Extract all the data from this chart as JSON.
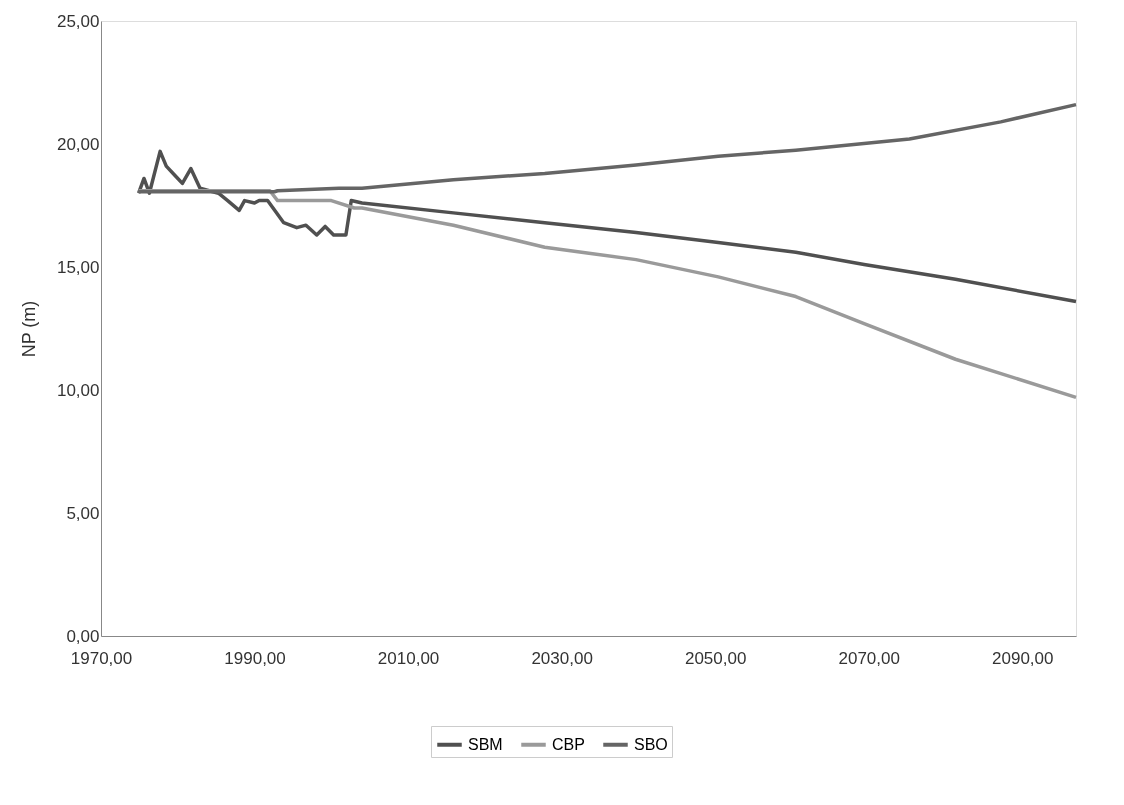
{
  "chart_data": {
    "type": "line",
    "ylabel": "NP (m)",
    "xlim": [
      1970,
      2097
    ],
    "ylim": [
      0,
      25
    ],
    "xticks": [
      {
        "value": 1970,
        "label": "1970,00"
      },
      {
        "value": 1990,
        "label": "1990,00"
      },
      {
        "value": 2010,
        "label": "2010,00"
      },
      {
        "value": 2030,
        "label": "2030,00"
      },
      {
        "value": 2050,
        "label": "2050,00"
      },
      {
        "value": 2070,
        "label": "2070,00"
      },
      {
        "value": 2090,
        "label": "2090,00"
      }
    ],
    "yticks": [
      {
        "value": 0,
        "label": "0,00"
      },
      {
        "value": 5,
        "label": "5,00"
      },
      {
        "value": 10,
        "label": "10,00"
      },
      {
        "value": 15,
        "label": "15,00"
      },
      {
        "value": 20,
        "label": "20,00"
      },
      {
        "value": 25,
        "label": "25,00"
      }
    ],
    "grid": false,
    "legend": "bottom",
    "line_style": "solid",
    "marker": "none",
    "series": [
      {
        "name": "SBM",
        "color": "#505050",
        "x": [
          1974.9,
          1975.6,
          1976.3,
          1977.7,
          1978.5,
          1979.7,
          1980.6,
          1981.7,
          1982.9,
          1985.3,
          1986.5,
          1988,
          1988.7,
          1990,
          1990.6,
          1991.7,
          1993.8,
          1995.5,
          1996.7,
          1998.1,
          1999.2,
          2000.3,
          2001.9,
          2002.6,
          2004,
          2015.9,
          2027.8,
          2039.7,
          2050.4,
          2060.5,
          2069.4,
          2081.3,
          2097
        ],
        "values": [
          18.0,
          18.6,
          18.0,
          19.7,
          19.1,
          18.7,
          18.4,
          19.0,
          18.2,
          18.0,
          17.7,
          17.3,
          17.7,
          17.6,
          17.7,
          17.7,
          16.8,
          16.6,
          16.7,
          16.3,
          16.65,
          16.3,
          16.3,
          17.7,
          17.6,
          17.2,
          16.8,
          16.4,
          16.0,
          15.6,
          15.1,
          14.5,
          13.6
        ]
      },
      {
        "name": "CBP",
        "color": "#9a9a9a",
        "x": [
          1974.9,
          1992,
          1993,
          2000,
          2003,
          2004,
          2015.9,
          2027.8,
          2039.7,
          2050.4,
          2060.5,
          2069.4,
          2081.3,
          2097
        ],
        "values": [
          18.1,
          18.1,
          17.7,
          17.7,
          17.4,
          17.4,
          16.7,
          15.8,
          15.3,
          14.6,
          13.8,
          12.7,
          11.25,
          9.7
        ]
      },
      {
        "name": "SBO",
        "color": "#656565",
        "x": [
          1974.9,
          1992.6,
          1993,
          2001,
          2004,
          2015.9,
          2027.8,
          2039.7,
          2050.4,
          2060.5,
          2075.3,
          2087.2,
          2097
        ],
        "values": [
          18.06,
          18.06,
          18.1,
          18.2,
          18.2,
          18.55,
          18.8,
          19.15,
          19.5,
          19.75,
          20.2,
          20.9,
          21.6
        ]
      }
    ]
  }
}
